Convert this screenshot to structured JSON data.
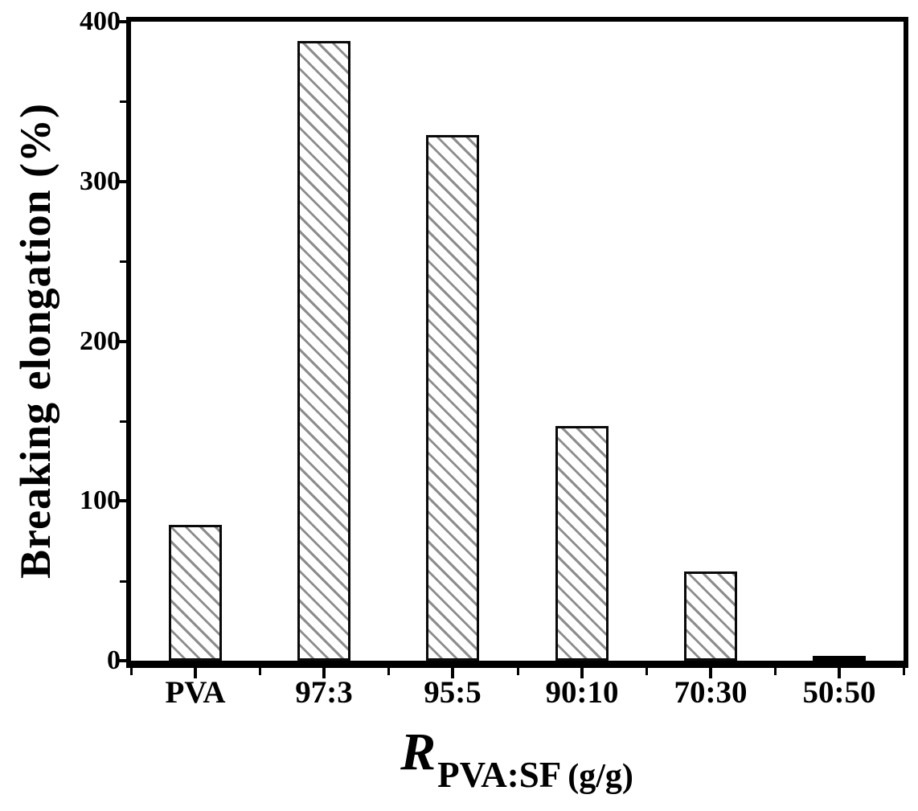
{
  "figure": {
    "background": "#ffffff",
    "text_color": "#000000",
    "axis_color": "#000000",
    "hatch_color": "#8d8d8d",
    "bar_fill": "#ffffff",
    "bar_edge": "#0a0a0a"
  },
  "chart_data": {
    "type": "bar",
    "title": "",
    "categories": [
      "PVA",
      "97:3",
      "95:5",
      "90:10",
      "70:30",
      "50:50"
    ],
    "values": [
      85,
      388,
      329,
      147,
      56,
      3
    ],
    "ylabel": "Breaking elongation (%)",
    "xlabel": {
      "symbol": "R",
      "subscript": "PVA:SF",
      "unit": "(g/g)"
    },
    "ylim": [
      0,
      400
    ],
    "yticks_major": [
      0,
      100,
      200,
      300,
      400
    ],
    "yticks_minor": [
      50,
      150,
      250,
      350
    ],
    "xticks_minor_at_boundaries": true,
    "grid": false,
    "legend": null,
    "bar_hatch": "backslash-diagonal"
  }
}
